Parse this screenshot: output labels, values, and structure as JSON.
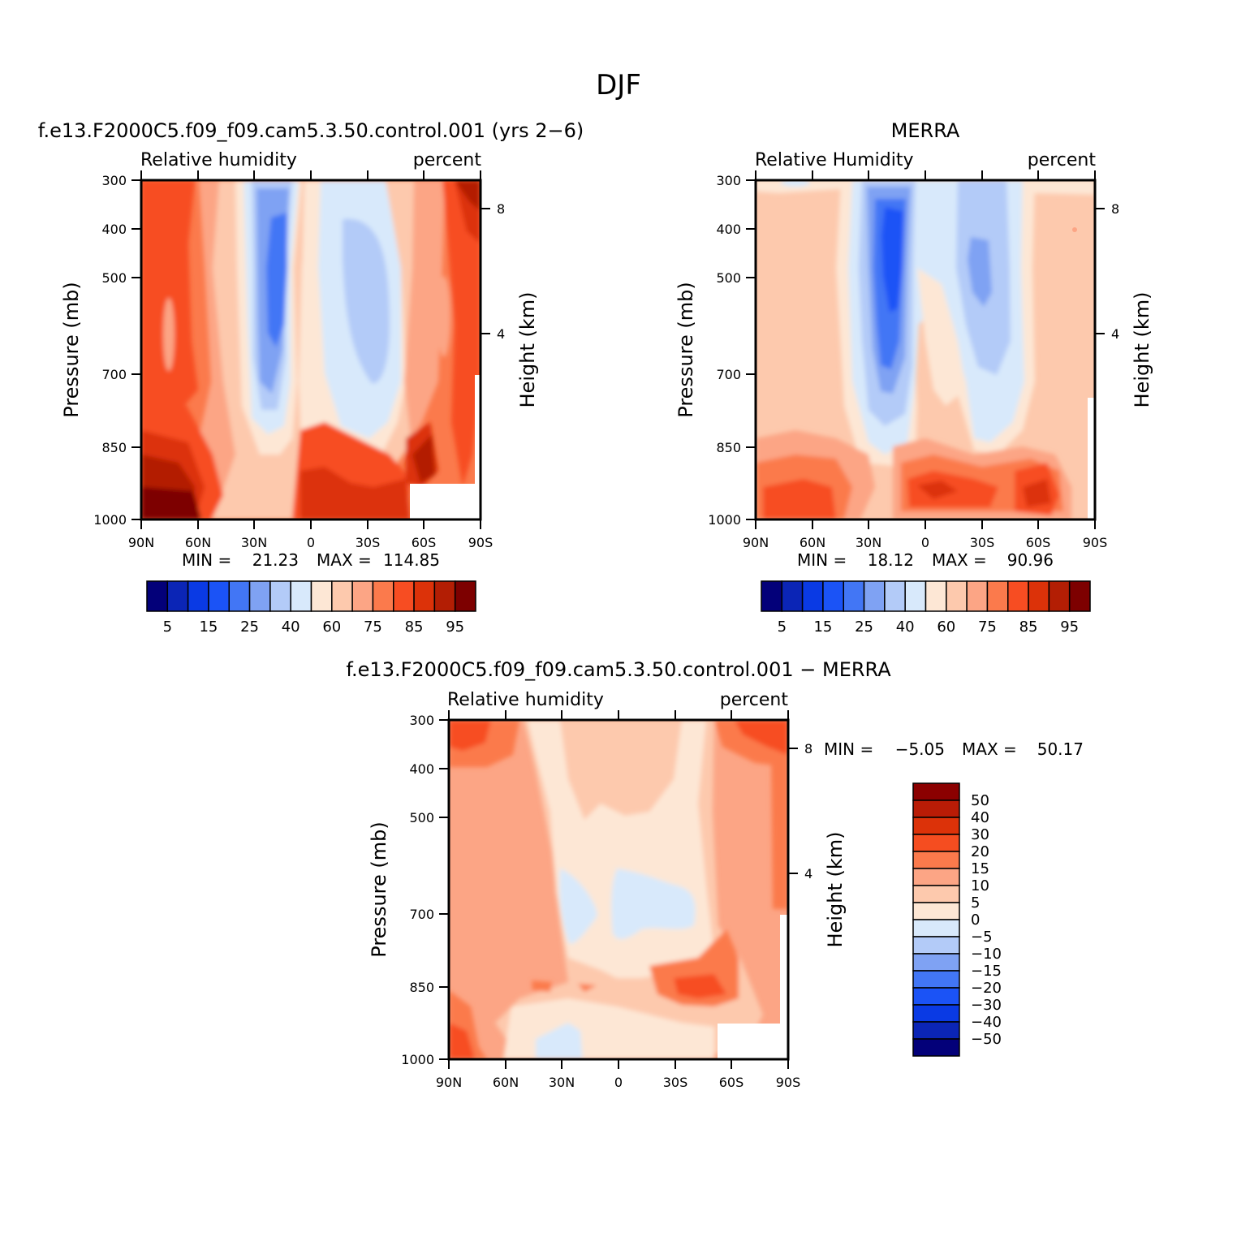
{
  "main_title": "DJF",
  "chart_data": [
    {
      "type": "contour",
      "title": "f.e13.F2000C5.f09_f09.cam5.3.50.control.001 (yrs 2−6)",
      "left_string": "Relative humidity",
      "right_string": "percent",
      "ylabel": "Pressure (mb)",
      "ylabel_right": "Height (km)",
      "x_ticks": [
        "90N",
        "60N",
        "30N",
        "0",
        "30S",
        "60S",
        "90S"
      ],
      "y_ticks": [
        300,
        400,
        500,
        700,
        850,
        1000
      ],
      "height_ticks": [
        8,
        4
      ],
      "min_label": "MIN =",
      "min_value": "21.23",
      "max_label": "MAX =",
      "max_value": "114.85",
      "colorbar_labels": [
        "5",
        "15",
        "25",
        "40",
        "60",
        "75",
        "85",
        "95"
      ],
      "colors": [
        "#030079",
        "#0b25b6",
        "#0a3ae4",
        "#1b53f6",
        "#4276f5",
        "#7fa2f3",
        "#b3cbf8",
        "#d8e9fb",
        "#fde7d5",
        "#fdc9ad",
        "#fca585",
        "#fb7a4c",
        "#f74d22",
        "#dc3209",
        "#b31e04",
        "#7d0000"
      ],
      "ylim": [
        1000,
        300
      ],
      "xlim": [
        "90N",
        "90S"
      ]
    },
    {
      "type": "contour",
      "title": "MERRA",
      "left_string": "Relative Humidity",
      "right_string": "percent",
      "ylabel": "Pressure (mb)",
      "ylabel_right": "Height (km)",
      "x_ticks": [
        "90N",
        "60N",
        "30N",
        "0",
        "30S",
        "60S",
        "90S"
      ],
      "y_ticks": [
        300,
        400,
        500,
        700,
        850,
        1000
      ],
      "height_ticks": [
        8,
        4
      ],
      "min_label": "MIN =",
      "min_value": "18.12",
      "max_label": "MAX =",
      "max_value": "90.96",
      "colorbar_labels": [
        "5",
        "15",
        "25",
        "40",
        "60",
        "75",
        "85",
        "95"
      ],
      "colors": [
        "#030079",
        "#0b25b6",
        "#0a3ae4",
        "#1b53f6",
        "#4276f5",
        "#7fa2f3",
        "#b3cbf8",
        "#d8e9fb",
        "#fde7d5",
        "#fdc9ad",
        "#fca585",
        "#fb7a4c",
        "#f74d22",
        "#dc3209",
        "#b31e04",
        "#7d0000"
      ],
      "ylim": [
        1000,
        300
      ],
      "xlim": [
        "90N",
        "90S"
      ]
    },
    {
      "type": "contour",
      "title": "f.e13.F2000C5.f09_f09.cam5.3.50.control.001 − MERRA",
      "left_string": "Relative humidity",
      "right_string": "percent",
      "ylabel": "Pressure (mb)",
      "ylabel_right": "Height (km)",
      "x_ticks": [
        "90N",
        "60N",
        "30N",
        "0",
        "30S",
        "60S",
        "90S"
      ],
      "y_ticks": [
        300,
        400,
        500,
        700,
        850,
        1000
      ],
      "height_ticks": [
        8,
        4
      ],
      "min_label": "MIN =",
      "min_value": "−5.05",
      "max_label": "MAX =",
      "max_value": "50.17",
      "colorbar_labels": [
        "50",
        "40",
        "30",
        "20",
        "15",
        "10",
        "5",
        "0",
        "−5",
        "−10",
        "−15",
        "−20",
        "−30",
        "−40",
        "−50"
      ],
      "colors": [
        "#8b0000",
        "#b91c06",
        "#dc3209",
        "#f54d20",
        "#fb7a4c",
        "#fca585",
        "#fdc9ad",
        "#fde7d5",
        "#d8e9fb",
        "#b3cbf8",
        "#7fa2f3",
        "#4276f5",
        "#1b53f6",
        "#0a3ae4",
        "#0b25b6",
        "#030079"
      ],
      "ylim": [
        1000,
        300
      ],
      "xlim": [
        "90N",
        "90S"
      ]
    }
  ]
}
